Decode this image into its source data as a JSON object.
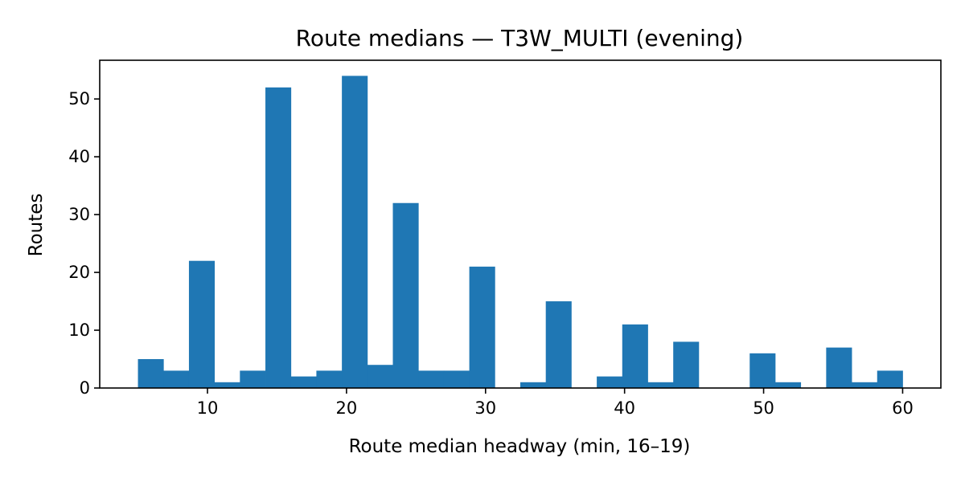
{
  "chart_data": {
    "type": "bar",
    "title": "Route medians — T3W_MULTI (evening)",
    "xlabel": "Route median headway (min, 16–19)",
    "ylabel": "Routes",
    "xlim": [
      2.25,
      62.75
    ],
    "ylim": [
      0,
      56.7
    ],
    "xticks": [
      10,
      20,
      30,
      40,
      50,
      60
    ],
    "yticks": [
      0,
      10,
      20,
      30,
      40,
      50
    ],
    "bin_edges": [
      5,
      6.833,
      8.667,
      10.5,
      12.333,
      14.167,
      16,
      17.833,
      19.667,
      21.5,
      23.333,
      25.167,
      27,
      28.833,
      30.667,
      32.5,
      34.333,
      36.167,
      38,
      39.833,
      41.667,
      43.5,
      45.333,
      47.167,
      49,
      50.833,
      52.667,
      54.5,
      56.333,
      58.167,
      60
    ],
    "values": [
      5,
      3,
      22,
      1,
      3,
      52,
      2,
      3,
      54,
      4,
      32,
      3,
      3,
      21,
      0,
      1,
      15,
      0,
      2,
      11,
      1,
      8,
      0,
      0,
      6,
      1,
      0,
      7,
      1,
      3
    ],
    "color": "#1f77b4",
    "grid": false,
    "legend": "none"
  }
}
